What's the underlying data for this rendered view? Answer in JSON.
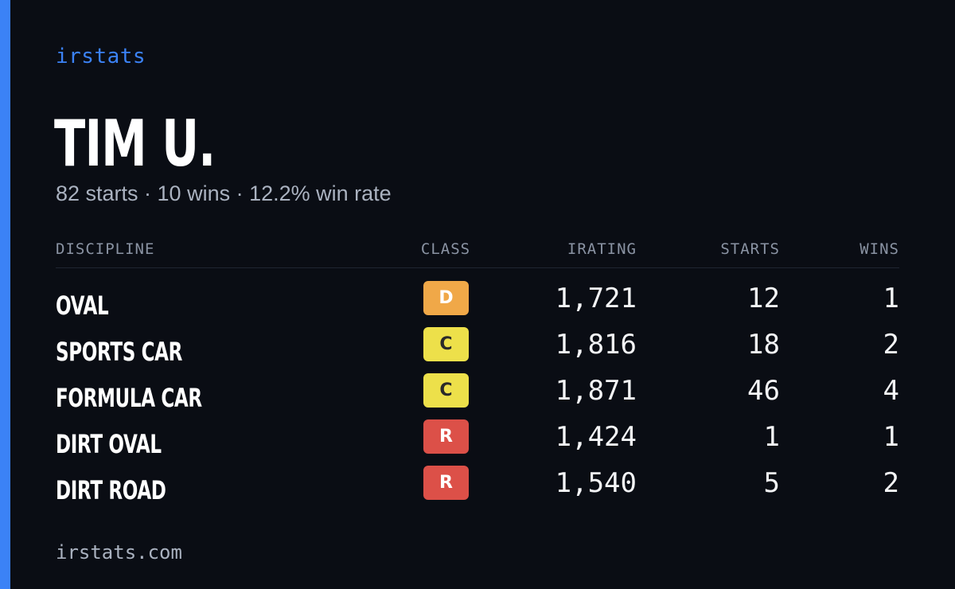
{
  "brand": "irstats",
  "driver": {
    "name": "TIM U.",
    "summary": "82 starts · 10 wins · 12.2% win rate"
  },
  "table": {
    "headers": {
      "discipline": "DISCIPLINE",
      "class": "CLASS",
      "irating": "IRATING",
      "starts": "STARTS",
      "wins": "WINS"
    },
    "rows": [
      {
        "discipline": "OVAL",
        "class": "D",
        "class_color": "#f0a848",
        "class_text_color": "#ffffff",
        "irating": "1,721",
        "starts": "12",
        "wins": "1"
      },
      {
        "discipline": "SPORTS CAR",
        "class": "C",
        "class_color": "#ede04a",
        "class_text_color": "#2a2a2a",
        "irating": "1,816",
        "starts": "18",
        "wins": "2"
      },
      {
        "discipline": "FORMULA CAR",
        "class": "C",
        "class_color": "#ede04a",
        "class_text_color": "#2a2a2a",
        "irating": "1,871",
        "starts": "46",
        "wins": "4"
      },
      {
        "discipline": "DIRT OVAL",
        "class": "R",
        "class_color": "#dc5048",
        "class_text_color": "#ffffff",
        "irating": "1,424",
        "starts": "1",
        "wins": "1"
      },
      {
        "discipline": "DIRT ROAD",
        "class": "R",
        "class_color": "#dc5048",
        "class_text_color": "#ffffff",
        "irating": "1,540",
        "starts": "5",
        "wins": "2"
      }
    ]
  },
  "footer": "irstats.com",
  "colors": {
    "background": "#0a0d14",
    "accent": "#3b82f6"
  }
}
